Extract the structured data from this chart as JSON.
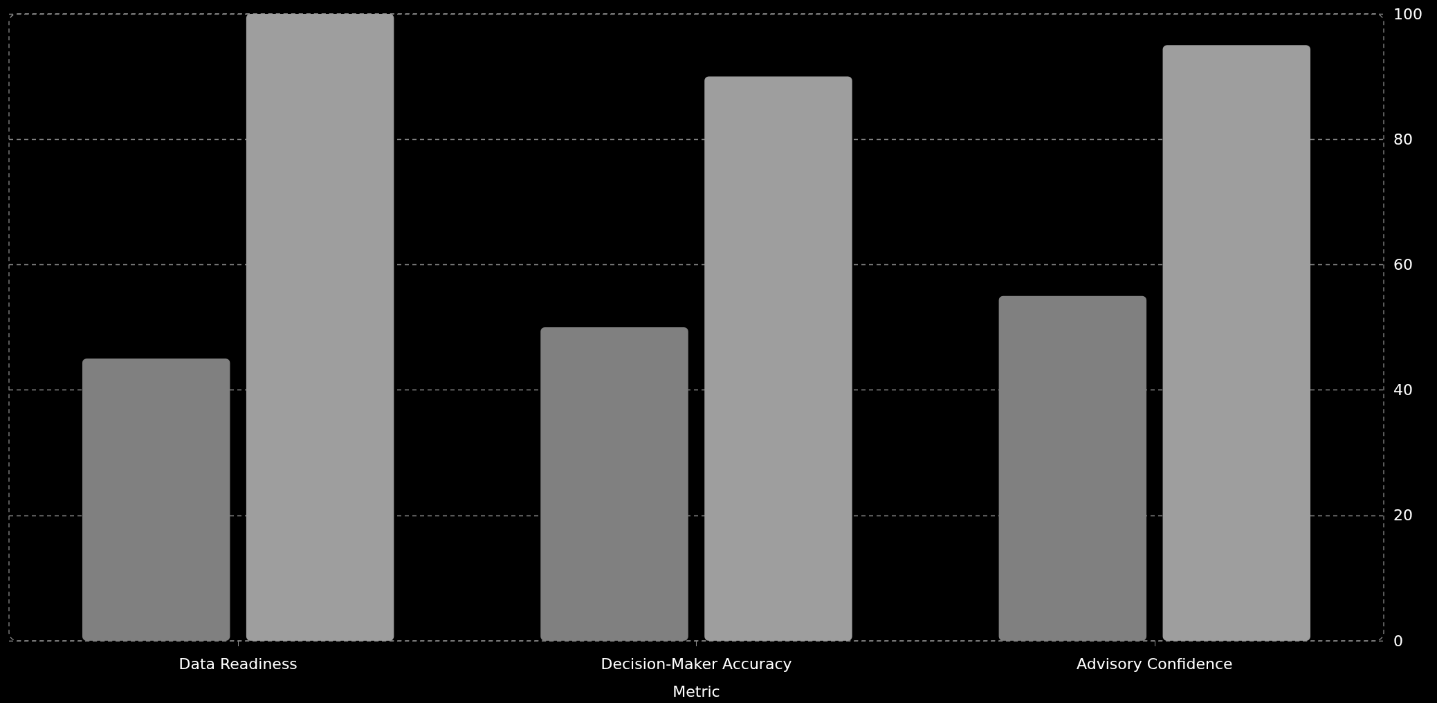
{
  "chart_data": {
    "type": "bar",
    "xlabel": "Metric",
    "categories": [
      "Data Readiness",
      "Decision-Maker Accuracy",
      "Advisory Confidence"
    ],
    "series": [
      {
        "color": "#808080",
        "values": [
          45,
          50,
          55
        ]
      },
      {
        "color": "#9e9e9e",
        "values": [
          100,
          90,
          95
        ]
      }
    ],
    "ylim": [
      0,
      100
    ],
    "yticks": [
      0,
      20,
      40,
      60,
      80,
      100
    ],
    "grid": "y"
  }
}
